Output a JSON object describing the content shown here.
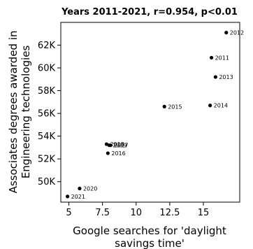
{
  "chart_data": {
    "type": "scatter",
    "title": "Years 2011-2021, r=0.954, p<0.01",
    "xlabel_lines": [
      "Google searches for 'daylight",
      "savings time'"
    ],
    "ylabel_lines": [
      "Associates degrees awarded in",
      "Engineering technologies"
    ],
    "xlim": [
      4.4,
      17.7
    ],
    "ylim": [
      48200,
      64000
    ],
    "x_ticks": [
      {
        "value": 5,
        "label": "5"
      },
      {
        "value": 7.5,
        "label": "7.5"
      },
      {
        "value": 10,
        "label": "10"
      },
      {
        "value": 12.5,
        "label": "12.5"
      },
      {
        "value": 15,
        "label": "15"
      }
    ],
    "y_ticks": [
      {
        "value": 50000,
        "label": "50K"
      },
      {
        "value": 52000,
        "label": "52K"
      },
      {
        "value": 54000,
        "label": "54K"
      },
      {
        "value": 56000,
        "label": "56K"
      },
      {
        "value": 58000,
        "label": "58K"
      },
      {
        "value": 60000,
        "label": "60K"
      },
      {
        "value": 62000,
        "label": "62K"
      }
    ],
    "grid": false,
    "points": [
      {
        "label": "2011",
        "x": 15.6,
        "y": 60900
      },
      {
        "label": "2012",
        "x": 16.7,
        "y": 63100
      },
      {
        "label": "2013",
        "x": 15.9,
        "y": 59200
      },
      {
        "label": "2014",
        "x": 15.5,
        "y": 56700
      },
      {
        "label": "2015",
        "x": 12.1,
        "y": 56600
      },
      {
        "label": "2016",
        "x": 7.9,
        "y": 52500
      },
      {
        "label": "2017",
        "x": 8.1,
        "y": 53200
      },
      {
        "label": "2018",
        "x": 7.8,
        "y": 53300
      },
      {
        "label": "2019",
        "x": 8.0,
        "y": 53200
      },
      {
        "label": "2020",
        "x": 5.8,
        "y": 49400
      },
      {
        "label": "2021",
        "x": 4.9,
        "y": 48700
      }
    ]
  }
}
